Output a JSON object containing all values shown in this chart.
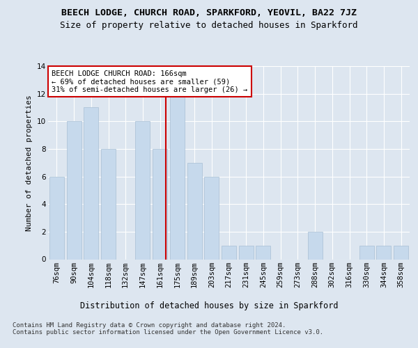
{
  "title1": "BEECH LODGE, CHURCH ROAD, SPARKFORD, YEOVIL, BA22 7JZ",
  "title2": "Size of property relative to detached houses in Sparkford",
  "xlabel": "Distribution of detached houses by size in Sparkford",
  "ylabel": "Number of detached properties",
  "categories": [
    "76sqm",
    "90sqm",
    "104sqm",
    "118sqm",
    "132sqm",
    "147sqm",
    "161sqm",
    "175sqm",
    "189sqm",
    "203sqm",
    "217sqm",
    "231sqm",
    "245sqm",
    "259sqm",
    "273sqm",
    "288sqm",
    "302sqm",
    "316sqm",
    "330sqm",
    "344sqm",
    "358sqm"
  ],
  "values": [
    6,
    10,
    11,
    8,
    0,
    10,
    8,
    12,
    7,
    6,
    1,
    1,
    1,
    0,
    0,
    2,
    0,
    0,
    1,
    1,
    1
  ],
  "bar_color": "#c6d9ec",
  "bar_edge_color": "#a8bfd4",
  "reference_line_color": "#cc0000",
  "annotation_text": "BEECH LODGE CHURCH ROAD: 166sqm\n← 69% of detached houses are smaller (59)\n31% of semi-detached houses are larger (26) →",
  "annotation_box_facecolor": "#ffffff",
  "annotation_box_edgecolor": "#cc0000",
  "ylim": [
    0,
    14
  ],
  "yticks": [
    0,
    2,
    4,
    6,
    8,
    10,
    12,
    14
  ],
  "background_color": "#dde6f0",
  "grid_color": "#ffffff",
  "footer_text": "Contains HM Land Registry data © Crown copyright and database right 2024.\nContains public sector information licensed under the Open Government Licence v3.0.",
  "title1_fontsize": 9.5,
  "title2_fontsize": 9,
  "xlabel_fontsize": 8.5,
  "ylabel_fontsize": 8,
  "tick_fontsize": 7.5,
  "annotation_fontsize": 7.5,
  "footer_fontsize": 6.5
}
